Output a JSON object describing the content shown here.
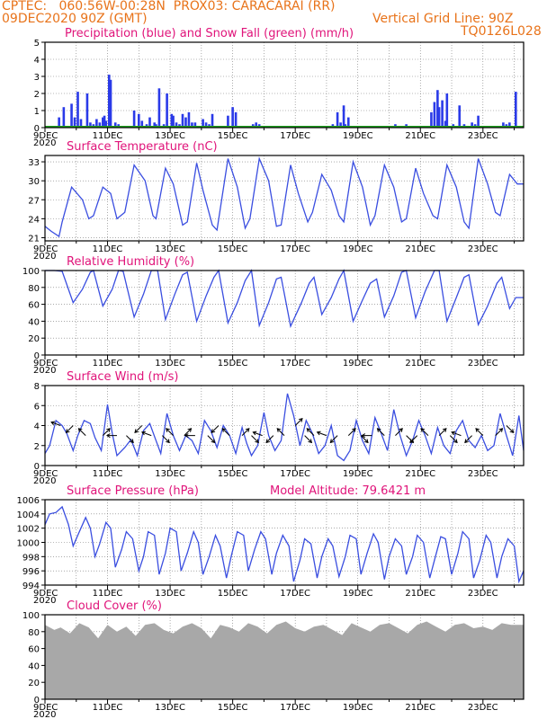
{
  "header": {
    "line1": "CPTEC:   060:56W-00:28N  PROX03: CARACARAI (RR)",
    "date": "09DEC2020 90Z (GMT)",
    "grid_note": "Vertical Grid Line: 90Z",
    "code": "TQ0126L028"
  },
  "colors": {
    "series": "#3a4ee0",
    "bar": "#2a3ae8",
    "snow": "#20a020",
    "cloud": "#a8a8a8",
    "title": "#e0147a",
    "header": "#e8731a"
  },
  "x_labels": [
    "9DEC",
    "11DEC",
    "13DEC",
    "15DEC",
    "17DEC",
    "19DEC",
    "21DEC",
    "23DEC"
  ],
  "x_overlap": "2020",
  "chart_data": [
    {
      "type": "bar",
      "title": "Precipitation (blue) and Snow Fall (green) (mm/h)",
      "ylim": [
        0,
        5
      ],
      "yticks": [
        "0",
        "1",
        "2",
        "3",
        "4",
        "5"
      ],
      "x_unit": "days since 09DEC 00Z",
      "xlim": [
        0,
        15.3
      ],
      "series": [
        {
          "name": "Precipitation",
          "x": [
            0.45,
            0.6,
            0.85,
            0.95,
            1.05,
            1.15,
            1.35,
            1.45,
            1.55,
            1.65,
            1.75,
            1.85,
            1.9,
            1.95,
            2.05,
            2.1,
            2.25,
            2.35,
            2.85,
            3.0,
            3.1,
            3.25,
            3.35,
            3.5,
            3.55,
            3.65,
            3.8,
            3.9,
            4.05,
            4.1,
            4.2,
            4.3,
            4.4,
            4.5,
            4.6,
            4.7,
            4.8,
            5.05,
            5.15,
            5.25,
            5.35,
            5.85,
            6.0,
            6.1,
            6.65,
            6.75,
            6.85,
            9.2,
            9.35,
            9.45,
            9.55,
            9.6,
            9.7,
            11.2,
            11.55,
            12.35,
            12.45,
            12.55,
            12.6,
            12.7,
            12.8,
            12.85,
            13.05,
            13.25,
            13.4,
            13.65,
            13.75,
            13.85,
            14.65,
            14.75,
            14.85,
            15.05
          ],
          "values": [
            0.6,
            1.2,
            1.4,
            0.6,
            2.1,
            0.5,
            2.0,
            0.3,
            0.2,
            0.5,
            0.3,
            0.6,
            0.7,
            0.4,
            3.1,
            2.8,
            0.3,
            0.2,
            1.0,
            0.8,
            0.4,
            0.2,
            0.6,
            0.3,
            0.2,
            2.3,
            0.2,
            2.0,
            0.8,
            0.7,
            0.3,
            0.2,
            0.8,
            0.6,
            0.9,
            0.3,
            0.3,
            0.5,
            0.3,
            0.2,
            0.8,
            0.7,
            1.2,
            0.9,
            0.2,
            0.3,
            0.2,
            0.2,
            0.9,
            0.3,
            1.3,
            0.2,
            0.6,
            0.2,
            0.2,
            0.9,
            1.5,
            2.2,
            1.2,
            1.6,
            0.4,
            2.0,
            0.2,
            1.3,
            0.2,
            0.3,
            0.2,
            0.7,
            0.3,
            0.2,
            0.3,
            2.1
          ]
        },
        {
          "name": "Snow Fall",
          "values": [
            0
          ]
        }
      ]
    },
    {
      "type": "line",
      "title": "Surface Temperature (nC)",
      "ylim": [
        20.5,
        34
      ],
      "yticks": [
        "21",
        "24",
        "27",
        "30",
        "33"
      ],
      "xlim": [
        0,
        15.3
      ],
      "x": [
        0,
        0.2,
        0.45,
        0.55,
        0.85,
        1.2,
        1.4,
        1.55,
        1.85,
        2.1,
        2.3,
        2.55,
        2.85,
        3.2,
        3.45,
        3.55,
        3.85,
        4.1,
        4.4,
        4.55,
        4.85,
        5.05,
        5.35,
        5.5,
        5.85,
        6.15,
        6.4,
        6.55,
        6.85,
        7.15,
        7.4,
        7.55,
        7.85,
        8.1,
        8.4,
        8.55,
        8.85,
        9.15,
        9.4,
        9.55,
        9.85,
        10.15,
        10.4,
        10.55,
        10.85,
        11.15,
        11.4,
        11.55,
        11.85,
        12.1,
        12.4,
        12.55,
        12.85,
        13.15,
        13.4,
        13.55,
        13.85,
        14.15,
        14.4,
        14.55,
        14.85,
        15.1,
        15.3
      ],
      "values": [
        22.8,
        22.0,
        21.2,
        23.5,
        29.0,
        27.0,
        24.0,
        24.5,
        29.0,
        28.0,
        24.0,
        25.0,
        32.5,
        30.0,
        24.5,
        24.0,
        32.0,
        29.5,
        23.0,
        23.5,
        32.8,
        28.5,
        23.0,
        22.2,
        33.5,
        29.0,
        22.5,
        24.0,
        33.5,
        30.0,
        22.8,
        23.0,
        32.5,
        28.0,
        23.5,
        25.0,
        31.0,
        28.5,
        24.5,
        23.5,
        33.0,
        29.0,
        23.0,
        24.5,
        32.5,
        29.0,
        23.5,
        24.0,
        32.0,
        28.0,
        24.5,
        24.0,
        32.5,
        29.0,
        23.5,
        22.5,
        33.5,
        29.5,
        25.0,
        24.5,
        31.0,
        29.5,
        29.5
      ]
    },
    {
      "type": "line",
      "title": "Relative Humidity (%)",
      "ylim": [
        0,
        100
      ],
      "yticks": [
        "0",
        "20",
        "40",
        "60",
        "80",
        "100"
      ],
      "xlim": [
        0,
        15.3
      ],
      "x": [
        0,
        0.3,
        0.55,
        0.9,
        1.2,
        1.45,
        1.55,
        1.85,
        2.15,
        2.35,
        2.5,
        2.85,
        3.15,
        3.4,
        3.6,
        3.85,
        4.15,
        4.4,
        4.55,
        4.85,
        5.15,
        5.4,
        5.55,
        5.85,
        6.15,
        6.4,
        6.6,
        6.85,
        7.15,
        7.4,
        7.55,
        7.85,
        8.2,
        8.45,
        8.6,
        8.85,
        9.15,
        9.4,
        9.55,
        9.85,
        10.15,
        10.4,
        10.6,
        10.85,
        11.15,
        11.4,
        11.55,
        11.85,
        12.15,
        12.45,
        12.6,
        12.85,
        13.15,
        13.4,
        13.55,
        13.85,
        14.15,
        14.45,
        14.6,
        14.85,
        15.05,
        15.3
      ],
      "values": [
        100,
        100,
        99,
        62,
        78,
        98,
        100,
        58,
        78,
        100,
        99,
        45,
        72,
        100,
        100,
        42,
        72,
        95,
        98,
        40,
        70,
        92,
        100,
        38,
        62,
        88,
        100,
        35,
        62,
        90,
        92,
        34,
        62,
        85,
        92,
        48,
        68,
        90,
        100,
        40,
        65,
        85,
        90,
        45,
        70,
        98,
        100,
        44,
        75,
        100,
        100,
        40,
        68,
        92,
        95,
        36,
        58,
        85,
        92,
        55,
        68,
        68
      ]
    },
    {
      "type": "line",
      "title": "Surface Wind (m/s)",
      "ylim": [
        0,
        8
      ],
      "yticks": [
        "0",
        "2",
        "4",
        "6",
        "8"
      ],
      "xlim": [
        0,
        15.3
      ],
      "x": [
        0,
        0.15,
        0.35,
        0.55,
        0.7,
        0.9,
        1.05,
        1.25,
        1.45,
        1.6,
        1.8,
        2.0,
        2.15,
        2.3,
        2.55,
        2.75,
        2.95,
        3.15,
        3.35,
        3.55,
        3.7,
        3.9,
        4.1,
        4.3,
        4.5,
        4.7,
        4.9,
        5.1,
        5.3,
        5.5,
        5.7,
        5.9,
        6.1,
        6.3,
        6.45,
        6.6,
        6.8,
        7.0,
        7.15,
        7.35,
        7.55,
        7.75,
        7.95,
        8.15,
        8.35,
        8.55,
        8.75,
        8.95,
        9.15,
        9.35,
        9.55,
        9.75,
        9.95,
        10.15,
        10.35,
        10.55,
        10.75,
        10.95,
        11.15,
        11.35,
        11.55,
        11.75,
        11.95,
        12.15,
        12.35,
        12.55,
        12.75,
        12.95,
        13.15,
        13.35,
        13.55,
        13.75,
        13.95,
        14.15,
        14.35,
        14.55,
        14.75,
        14.95,
        15.15,
        15.3
      ],
      "values": [
        1.2,
        2.0,
        4.5,
        4.0,
        3.2,
        1.5,
        3.0,
        4.5,
        4.2,
        2.8,
        1.5,
        6.1,
        3.2,
        1.0,
        1.8,
        2.6,
        1.0,
        3.5,
        4.2,
        2.5,
        1.2,
        5.2,
        3.0,
        1.5,
        3.0,
        2.5,
        1.2,
        4.5,
        3.5,
        1.8,
        4.0,
        3.0,
        1.2,
        3.8,
        2.2,
        1.0,
        2.0,
        5.3,
        3.0,
        1.5,
        2.5,
        7.2,
        5.0,
        2.0,
        4.5,
        3.2,
        1.2,
        2.0,
        4.0,
        1.0,
        0.5,
        1.5,
        4.5,
        2.5,
        1.2,
        4.8,
        3.2,
        1.5,
        5.6,
        3.0,
        1.0,
        2.5,
        4.5,
        3.0,
        1.2,
        3.8,
        2.0,
        1.2,
        3.5,
        4.5,
        2.5,
        1.8,
        3.0,
        1.5,
        2.0,
        5.2,
        3.0,
        1.0,
        5.0,
        1.5
      ],
      "arrows": {
        "x": [
          0.5,
          0.9,
          1.3,
          1.85,
          2.3,
          2.6,
          3.1,
          3.4,
          3.75,
          4.1,
          4.45,
          4.8,
          5.2,
          5.55,
          5.9,
          6.3,
          6.6,
          6.95,
          7.3,
          7.65,
          8.0,
          8.3,
          8.6,
          9.0,
          9.35,
          9.7,
          10.1,
          10.45,
          10.85,
          11.2,
          11.55,
          11.9,
          12.25,
          12.6,
          12.95,
          13.3,
          13.65,
          14.0,
          14.4,
          14.75
        ],
        "speed": [
          4,
          4,
          3,
          3,
          3,
          3,
          4,
          3,
          3,
          3,
          3,
          3,
          3,
          4,
          3,
          3,
          3,
          3,
          3,
          3,
          4,
          3,
          3,
          3,
          3,
          3,
          3,
          3,
          3,
          3,
          3,
          3,
          3,
          3,
          3,
          3,
          3,
          3,
          3,
          4
        ],
        "dir_deg": [
          200,
          135,
          225,
          315,
          180,
          45,
          135,
          200,
          45,
          225,
          315,
          180,
          45,
          135,
          225,
          315,
          45,
          200,
          135,
          225,
          315,
          45,
          225,
          200,
          135,
          315,
          45,
          180,
          225,
          315,
          45,
          135,
          225,
          315,
          45,
          200,
          135,
          225,
          315,
          45
        ]
      }
    },
    {
      "type": "line",
      "title": "Surface Pressure (hPa)",
      "annotation": "Model Altitude: 79.6421 m",
      "ylim": [
        994,
        1006
      ],
      "yticks": [
        "994",
        "996",
        "998",
        "1000",
        "1002",
        "1004",
        "1006"
      ],
      "xlim": [
        0,
        15.3
      ],
      "x": [
        0,
        0.15,
        0.35,
        0.55,
        0.75,
        0.9,
        1.1,
        1.3,
        1.45,
        1.6,
        1.75,
        1.95,
        2.1,
        2.25,
        2.45,
        2.6,
        2.8,
        3.0,
        3.15,
        3.3,
        3.5,
        3.65,
        3.85,
        4.0,
        4.2,
        4.35,
        4.55,
        4.75,
        4.9,
        5.05,
        5.25,
        5.45,
        5.6,
        5.8,
        5.95,
        6.15,
        6.35,
        6.5,
        6.7,
        6.9,
        7.05,
        7.25,
        7.4,
        7.6,
        7.8,
        7.95,
        8.15,
        8.3,
        8.5,
        8.7,
        8.85,
        9.05,
        9.2,
        9.4,
        9.6,
        9.75,
        9.95,
        10.1,
        10.3,
        10.5,
        10.65,
        10.85,
        11.0,
        11.2,
        11.4,
        11.55,
        11.75,
        11.9,
        12.1,
        12.3,
        12.45,
        12.65,
        12.8,
        13.0,
        13.2,
        13.35,
        13.55,
        13.7,
        13.9,
        14.1,
        14.25,
        14.45,
        14.6,
        14.8,
        15.0,
        15.15,
        15.3
      ],
      "values": [
        1002.5,
        1004.0,
        1004.2,
        1005.0,
        1002.5,
        999.5,
        1001.5,
        1003.5,
        1002.0,
        998.0,
        999.8,
        1002.8,
        1002.0,
        996.5,
        999.0,
        1001.5,
        1000.5,
        996.0,
        998.0,
        1001.5,
        1001.0,
        995.5,
        998.5,
        1002.0,
        1001.5,
        996.0,
        998.5,
        1001.5,
        1000.0,
        995.5,
        998.0,
        1001.0,
        999.5,
        995.0,
        998.0,
        1001.5,
        1001.0,
        996.0,
        999.0,
        1001.5,
        1000.5,
        995.5,
        998.5,
        1001.0,
        999.5,
        994.5,
        997.5,
        1000.5,
        999.8,
        995.0,
        998.0,
        1000.5,
        999.5,
        995.2,
        998.0,
        1001.0,
        1000.5,
        995.5,
        998.5,
        1001.2,
        1000.0,
        994.8,
        998.0,
        1000.5,
        999.5,
        995.5,
        998.0,
        1001.0,
        1000.0,
        995.0,
        997.5,
        1000.8,
        1000.5,
        995.5,
        998.5,
        1001.5,
        1000.5,
        995.0,
        997.5,
        1001.0,
        1000.0,
        995.0,
        998.0,
        1000.5,
        999.5,
        994.5,
        996.0
      ]
    },
    {
      "type": "area",
      "title": "Cloud Cover (%)",
      "ylim": [
        0,
        100
      ],
      "yticks": [
        "0",
        "20",
        "40",
        "60",
        "80",
        "100"
      ],
      "xlim": [
        0,
        15.3
      ],
      "x": [
        0,
        0.3,
        0.5,
        0.8,
        1.1,
        1.4,
        1.7,
        2.0,
        2.3,
        2.6,
        2.9,
        3.2,
        3.5,
        3.8,
        4.1,
        4.4,
        4.7,
        5.0,
        5.3,
        5.6,
        5.9,
        6.2,
        6.5,
        6.8,
        7.1,
        7.4,
        7.7,
        8.0,
        8.3,
        8.6,
        8.9,
        9.2,
        9.5,
        9.8,
        10.1,
        10.4,
        10.7,
        11.0,
        11.3,
        11.6,
        11.9,
        12.2,
        12.5,
        12.8,
        13.1,
        13.4,
        13.7,
        14.0,
        14.3,
        14.6,
        14.9,
        15.3
      ],
      "values": [
        88,
        82,
        85,
        78,
        90,
        85,
        72,
        88,
        80,
        86,
        75,
        88,
        90,
        82,
        78,
        86,
        90,
        84,
        72,
        88,
        85,
        80,
        90,
        86,
        78,
        88,
        92,
        84,
        80,
        86,
        88,
        82,
        76,
        90,
        85,
        80,
        88,
        90,
        84,
        78,
        88,
        92,
        86,
        80,
        88,
        90,
        84,
        86,
        82,
        90,
        88,
        88
      ]
    }
  ]
}
